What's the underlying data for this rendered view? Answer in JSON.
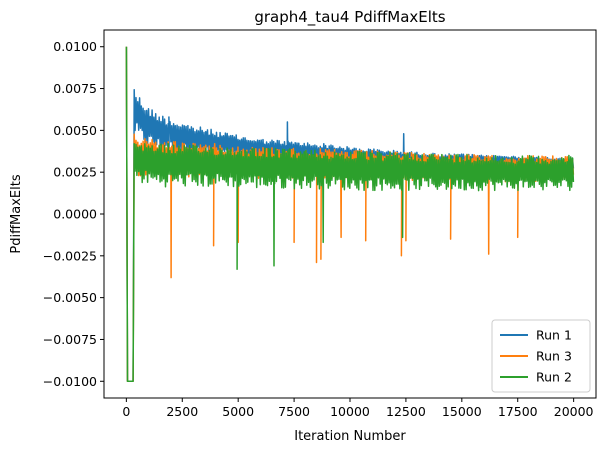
{
  "chart_data": {
    "type": "line",
    "title": "graph4_tau4 PdiffMaxElts",
    "xlabel": "Iteration Number",
    "ylabel": "PdiffMaxElts",
    "xlim": [
      -1000,
      21000
    ],
    "ylim": [
      -0.011,
      0.011
    ],
    "xticks": [
      0,
      2500,
      5000,
      7500,
      10000,
      12500,
      15000,
      17500,
      20000
    ],
    "xtick_labels": [
      "0",
      "2500",
      "5000",
      "7500",
      "10000",
      "12500",
      "15000",
      "17500",
      "20000"
    ],
    "yticks": [
      -0.01,
      -0.0075,
      -0.005,
      -0.0025,
      0.0,
      0.0025,
      0.005,
      0.0075,
      0.01
    ],
    "ytick_labels": [
      "−0.0100",
      "−0.0075",
      "−0.0050",
      "−0.0025",
      "0.0000",
      "0.0025",
      "0.0050",
      "0.0075",
      "0.0100"
    ],
    "grid": false,
    "legend_position": "lower-right",
    "series": [
      {
        "name": "Run 1",
        "color": "#1f77b4",
        "x": [
          0,
          50,
          100,
          300,
          350,
          400,
          500,
          750,
          1000,
          1500,
          2000,
          2500,
          3000,
          4000,
          5000,
          6000,
          7000,
          8000,
          9000,
          10000,
          11000,
          12000,
          13000,
          14000,
          15000,
          16000,
          17000,
          18000,
          19000,
          20000
        ],
        "upper": [
          0.01,
          -0.01,
          -0.01,
          -0.01,
          0.0079,
          0.0075,
          0.0072,
          0.0068,
          0.0064,
          0.006,
          0.0057,
          0.0055,
          0.0053,
          0.005,
          0.0047,
          0.0045,
          0.0044,
          0.0043,
          0.0042,
          0.004,
          0.0039,
          0.0038,
          0.0037,
          0.0036,
          0.0036,
          0.0035,
          0.0035,
          0.0034,
          0.0034,
          0.0034
        ],
        "lower": [
          0.01,
          -0.01,
          -0.01,
          -0.01,
          0.005,
          0.0046,
          0.0044,
          0.0042,
          0.004,
          0.0038,
          0.0037,
          0.0036,
          0.0035,
          0.0034,
          0.0033,
          0.0032,
          0.0031,
          0.003,
          0.003,
          0.003,
          0.0029,
          0.0029,
          0.0029,
          0.0028,
          0.0028,
          0.0028,
          0.0028,
          0.0028,
          0.0027,
          0.0027
        ],
        "spikes": [
          [
            1900,
            0.0058
          ],
          [
            7200,
            0.0055
          ],
          [
            12400,
            0.0048
          ]
        ]
      },
      {
        "name": "Run 3",
        "color": "#ff7f0e",
        "x": [
          0,
          50,
          100,
          300,
          350,
          400,
          500,
          1000,
          2000,
          3000,
          4000,
          5000,
          6000,
          7000,
          8000,
          9000,
          10000,
          11000,
          12000,
          13000,
          14000,
          15000,
          16000,
          17000,
          18000,
          19000,
          20000
        ],
        "upper": [
          0.01,
          -0.01,
          -0.01,
          -0.01,
          0.005,
          0.0048,
          0.0046,
          0.0045,
          0.0044,
          0.0043,
          0.0042,
          0.0041,
          0.004,
          0.004,
          0.0039,
          0.0039,
          0.0038,
          0.0038,
          0.0037,
          0.0037,
          0.0036,
          0.0036,
          0.0035,
          0.0035,
          0.0035,
          0.0035,
          0.0034
        ],
        "lower": [
          0.01,
          -0.01,
          -0.01,
          -0.01,
          0.0025,
          0.0024,
          0.0023,
          0.0022,
          0.0022,
          0.0022,
          0.0022,
          0.0021,
          0.0021,
          0.0021,
          0.0021,
          0.002,
          0.002,
          0.002,
          0.002,
          0.002,
          0.002,
          0.002,
          0.0019,
          0.0019,
          0.0019,
          0.0019,
          0.0019
        ],
        "spikes": [
          [
            2000,
            -0.0038
          ],
          [
            3900,
            -0.0019
          ],
          [
            5000,
            -0.0017
          ],
          [
            7500,
            -0.0017
          ],
          [
            8500,
            -0.0029
          ],
          [
            8700,
            -0.0027
          ],
          [
            9600,
            -0.0014
          ],
          [
            10700,
            -0.0016
          ],
          [
            12300,
            -0.0025
          ],
          [
            12500,
            -0.0016
          ],
          [
            14500,
            -0.0015
          ],
          [
            16200,
            -0.0024
          ],
          [
            17500,
            -0.0014
          ]
        ]
      },
      {
        "name": "Run 2",
        "color": "#2ca02c",
        "x": [
          0,
          50,
          100,
          300,
          350,
          400,
          500,
          1000,
          2000,
          3000,
          4000,
          5000,
          6000,
          7000,
          8000,
          9000,
          10000,
          11000,
          12000,
          13000,
          14000,
          15000,
          16000,
          17000,
          18000,
          19000,
          20000
        ],
        "upper": [
          0.01,
          -0.01,
          -0.01,
          -0.01,
          0.0046,
          0.0045,
          0.0044,
          0.0043,
          0.0042,
          0.0041,
          0.0041,
          0.004,
          0.004,
          0.0039,
          0.0039,
          0.0038,
          0.0038,
          0.0037,
          0.0037,
          0.0037,
          0.0036,
          0.0036,
          0.0036,
          0.0035,
          0.0035,
          0.0035,
          0.0035
        ],
        "lower": [
          0.01,
          -0.01,
          -0.01,
          -0.01,
          0.0022,
          0.0021,
          0.0019,
          0.0017,
          0.0016,
          0.0016,
          0.0016,
          0.0016,
          0.0015,
          0.0015,
          0.0015,
          0.0015,
          0.0014,
          0.0014,
          0.0014,
          0.0014,
          0.0014,
          0.0014,
          0.0014,
          0.0014,
          0.0014,
          0.0014,
          0.0014
        ],
        "spikes": [
          [
            4950,
            -0.0033
          ],
          [
            6600,
            -0.0031
          ],
          [
            8800,
            -0.0017
          ],
          [
            12350,
            -0.0014
          ]
        ]
      }
    ]
  }
}
